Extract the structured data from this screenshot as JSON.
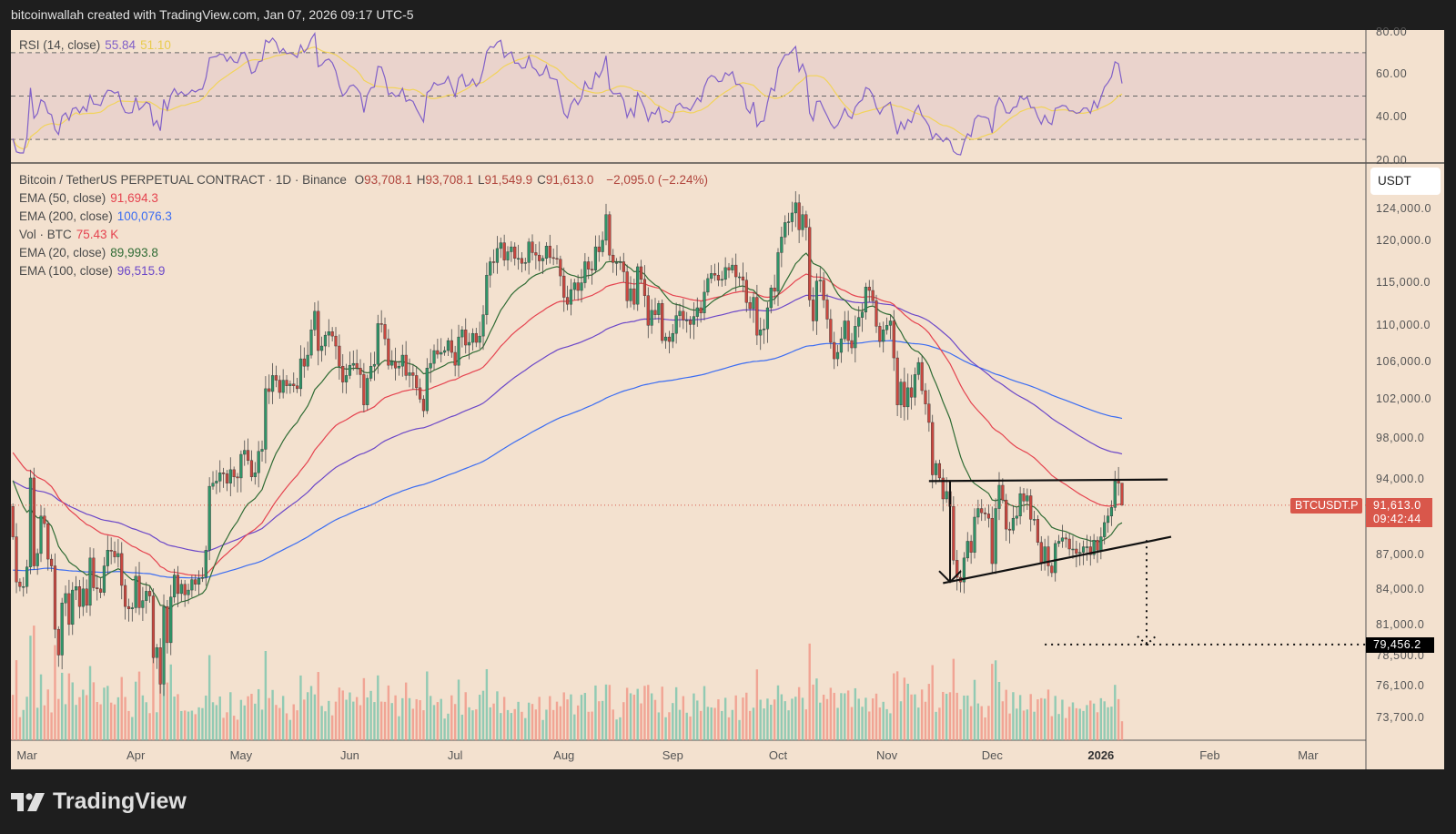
{
  "header": {
    "caption": "bitcoinwallah created with TradingView.com, Jan 07, 2026 09:17 UTC-5"
  },
  "brand": {
    "name": "TradingView"
  },
  "colors": {
    "ema20": "#2f6b34",
    "ema50": "#e5434f",
    "ema100": "#6b47c8",
    "ema200": "#3a6cf2",
    "rsi": "#8060c8",
    "rsi_ma": "#f2d35a",
    "up": "#2f9468",
    "down": "#c9473f",
    "vol_up": "#7fc6ae",
    "vol_down": "#f0998a",
    "background": "#f3e1cf"
  },
  "rsi_pane": {
    "legend_label": "RSI (14, close)",
    "rsi_value": "55.84",
    "ma_value": "51.10",
    "ticks": [
      "80.00",
      "60.00",
      "40.00",
      "20.00"
    ],
    "levels": [
      70,
      50,
      30
    ]
  },
  "main_pane": {
    "symbol": "Bitcoin / TetherUS PERPETUAL CONTRACT · 1D · Binance",
    "ohlc": [
      {
        "k": "O",
        "v": "93,708.1"
      },
      {
        "k": "H",
        "v": "93,708.1"
      },
      {
        "k": "L",
        "v": "91,549.9"
      },
      {
        "k": "C",
        "v": "91,613.0"
      }
    ],
    "change": "−2,095.0 (−2.24%)",
    "indicators": [
      {
        "label": "EMA (50, close)",
        "value": "91,694.3",
        "color": "#e5434f"
      },
      {
        "label": "EMA (200, close)",
        "value": "100,076.3",
        "color": "#3a6cf2"
      },
      {
        "label": "Vol · BTC",
        "value": "75.43 K",
        "color": "#e5434f"
      },
      {
        "label": "EMA (20, close)",
        "value": "89,993.8",
        "color": "#2f6b34"
      },
      {
        "label": "EMA (100, close)",
        "value": "96,515.9",
        "color": "#6b47c8"
      }
    ],
    "currency_button": "USDT",
    "symbol_tag": "BTCUSDT.P",
    "last_price": "91,613.0",
    "countdown": "09:42:44",
    "target_price": "79,456.2"
  },
  "chart_data": {
    "type": "candlestick",
    "scale": "log",
    "first_date": "2025-02-25",
    "first_open": 91500,
    "last_bar": {
      "open": 93708.1,
      "high": 93708.1,
      "low": 91549.9,
      "close": 91613.0,
      "volume_k": 75.43
    },
    "close": [
      88700,
      84700,
      84300,
      84300,
      86000,
      94200,
      86100,
      87200,
      90600,
      89900,
      86700,
      86100,
      80700,
      78600,
      82900,
      83700,
      81100,
      84000,
      84300,
      82600,
      84100,
      82700,
      86800,
      84200,
      84100,
      83800,
      86100,
      87500,
      87400,
      86900,
      87200,
      84400,
      82600,
      82400,
      82500,
      85200,
      82500,
      83100,
      83900,
      83500,
      78400,
      79200,
      76300,
      82600,
      79600,
      83400,
      85300,
      83700,
      84500,
      83600,
      84000,
      84900,
      84500,
      85000,
      85100,
      87500,
      93400,
      93700,
      93900,
      94700,
      94600,
      93700,
      95000,
      94300,
      94200,
      96500,
      96900,
      95900,
      94300,
      94700,
      96800,
      97000,
      103200,
      102900,
      104600,
      104100,
      102800,
      104100,
      103500,
      103700,
      103500,
      103200,
      106400,
      105600,
      106800,
      109600,
      111700,
      107300,
      107800,
      109000,
      109400,
      108900,
      107800,
      105600,
      103900,
      104600,
      105700,
      105900,
      105400,
      104700,
      101500,
      104300,
      105600,
      105800,
      110300,
      110200,
      108600,
      105700,
      106100,
      105400,
      105600,
      106800,
      104600,
      104900,
      104600,
      103300,
      102100,
      100900,
      105400,
      105900,
      107300,
      106900,
      107100,
      107300,
      108400,
      107100,
      105700,
      108800,
      109600,
      107900,
      108200,
      109200,
      108200,
      108900,
      111300,
      115900,
      117500,
      117400,
      119100,
      119800,
      117700,
      118700,
      119300,
      117900,
      117900,
      117300,
      117400,
      119900,
      118600,
      118300,
      117600,
      117900,
      119400,
      118000,
      117900,
      117800,
      115800,
      113300,
      112500,
      114200,
      115000,
      114100,
      115000,
      117500,
      116600,
      116500,
      119300,
      118700,
      120100,
      123300,
      118300,
      117400,
      117400,
      117500,
      116300,
      112900,
      114300,
      112500,
      116900,
      115400,
      113500,
      110100,
      111800,
      111300,
      112600,
      108400,
      108800,
      108300,
      109200,
      111200,
      111700,
      110700,
      110700,
      110200,
      111100,
      112100,
      111500,
      113900,
      115500,
      116100,
      115900,
      115300,
      115400,
      116800,
      116500,
      117100,
      115700,
      115700,
      115300,
      112700,
      112000,
      113300,
      109000,
      109600,
      109700,
      112100,
      114400,
      114000,
      118600,
      120500,
      122300,
      122400,
      123500,
      124800,
      121400,
      123300,
      121700,
      113000,
      110600,
      115200,
      115300,
      113000,
      110800,
      108200,
      106400,
      107100,
      108600,
      110600,
      108400,
      107600,
      110000,
      111000,
      111600,
      114500,
      114100,
      112900,
      110000,
      108300,
      109600,
      110100,
      110600,
      106500,
      101500,
      103900,
      101300,
      103300,
      102300,
      104700,
      106000,
      103000,
      101600,
      99700,
      94500,
      95600,
      94200,
      92200,
      92900,
      91500,
      86600,
      85100,
      84700,
      86800,
      88300,
      87300,
      90500,
      91300,
      90900,
      90800,
      90400,
      86300,
      91300,
      93500,
      92100,
      89400,
      89300,
      90400,
      90600,
      92700,
      92000,
      92500,
      90300,
      90300,
      88200,
      86400,
      87800,
      86100,
      85500,
      88100,
      88300,
      88600,
      88500,
      87600,
      87600,
      87200,
      87300,
      87800,
      87800,
      87100,
      88400,
      87500,
      88700,
      90000,
      90600,
      91400,
      93900,
      93700,
      91613
    ],
    "ema_initial": {
      "ema20": 94500,
      "ema50": 97000,
      "ema100": 94000,
      "ema200": 85700
    },
    "price_ticks": [
      124000,
      120000,
      115000,
      110000,
      106000,
      102000,
      98000,
      94000,
      87000,
      84000,
      81000,
      78500,
      76100,
      73700
    ],
    "price_tick_labels": [
      "124,000.0",
      "120,000.0",
      "115,000.0",
      "110,000.0",
      "106,000.0",
      "102,000.0",
      "98,000.0",
      "94,000.0",
      "87,000.0",
      "84,000.0",
      "81,000.0",
      "78,500.0",
      "76,100.0",
      "73,700.0"
    ],
    "time_ticks": [
      {
        "label": "Mar",
        "date": "2025-03-01"
      },
      {
        "label": "Apr",
        "date": "2025-04-01"
      },
      {
        "label": "May",
        "date": "2025-05-01"
      },
      {
        "label": "Jun",
        "date": "2025-06-01"
      },
      {
        "label": "Jul",
        "date": "2025-07-01"
      },
      {
        "label": "Aug",
        "date": "2025-08-01"
      },
      {
        "label": "Sep",
        "date": "2025-09-01"
      },
      {
        "label": "Oct",
        "date": "2025-10-01"
      },
      {
        "label": "Nov",
        "date": "2025-11-01"
      },
      {
        "label": "Dec",
        "date": "2025-12-01"
      },
      {
        "label": "2026",
        "date": "2026-01-01",
        "bold": true
      },
      {
        "label": "Feb",
        "date": "2026-02-01"
      },
      {
        "label": "Mar",
        "date": "2026-03-01"
      }
    ],
    "annotations": {
      "resistance_line": {
        "from": {
          "date": "2025-11-13",
          "price": 93900
        },
        "to": {
          "date": "2026-01-20",
          "price": 94050
        }
      },
      "support_trendline": {
        "from": {
          "date": "2025-11-17",
          "price": 84600
        },
        "to": {
          "date": "2026-01-21",
          "price": 88700
        }
      },
      "measured_move_arrow": {
        "date": "2025-11-19",
        "from_price": 93900,
        "to_price": 84700
      },
      "projection_arrow": {
        "date": "2026-01-14",
        "from_price": 88400,
        "to_price": 79456.2
      },
      "target_line": {
        "from_date": "2025-12-16",
        "price": 79456.2
      }
    }
  }
}
